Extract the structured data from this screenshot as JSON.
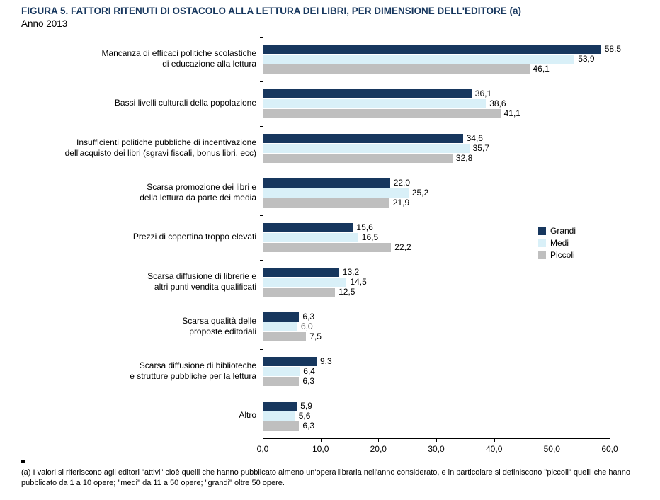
{
  "title": "FIGURA 5. FATTORI RITENUTI DI OSTACOLO ALLA LETTURA DEI LIBRI, PER DIMENSIONE DELL'EDITORE (a)",
  "subtitle": "Anno 2013",
  "footnote": "(a) I valori si riferiscono agli editori \"attivi\" cioè quelli che hanno pubblicato almeno un'opera libraria nell'anno considerato, e in particolare si definiscono \"piccoli\" quelli che hanno pubblicato da 1 a 10 opere; \"medi\" da 11 a 50 opere; \"grandi\" oltre 50 opere.",
  "chart_data": {
    "type": "bar",
    "orientation": "horizontal",
    "title": "Fattori ritenuti di ostacolo alla lettura dei libri, per dimensione dell'editore - Anno 2013",
    "xlabel": "",
    "ylabel": "",
    "xlim": [
      0,
      60
    ],
    "xticks": [
      "0,0",
      "10,0",
      "20,0",
      "30,0",
      "40,0",
      "50,0",
      "60,0"
    ],
    "grid": false,
    "legend_position": "right-middle",
    "categories": [
      "Mancanza di efficaci politiche scolastiche\ndi educazione alla lettura",
      "Bassi livelli culturali della popolazione",
      "Insufficienti politiche pubbliche di incentivazione\ndell'acquisto dei libri (sgravi fiscali, bonus libri, ecc)",
      "Scarsa promozione dei libri e\ndella lettura da parte dei media",
      "Prezzi di copertina troppo elevati",
      "Scarsa diffusione di librerie e\naltri punti vendita qualificati",
      "Scarsa qualità delle\nproposte editoriali",
      "Scarsa diffusione di biblioteche\ne strutture pubbliche per la lettura",
      "Altro"
    ],
    "series": [
      {
        "name": "Grandi",
        "color": "#17375E",
        "values": [
          58.5,
          36.1,
          34.6,
          22.0,
          15.6,
          13.2,
          6.3,
          9.3,
          5.9
        ]
      },
      {
        "name": "Medi",
        "color": "#D9F0F8",
        "values": [
          53.9,
          38.6,
          35.7,
          25.2,
          16.5,
          14.5,
          6.0,
          6.4,
          5.6
        ]
      },
      {
        "name": "Piccoli",
        "color": "#BFBFBF",
        "values": [
          46.1,
          41.1,
          32.8,
          21.9,
          22.2,
          12.5,
          7.5,
          6.3,
          6.3
        ]
      }
    ],
    "colors": {
      "title": "#17375E",
      "axis": "#000000"
    }
  }
}
